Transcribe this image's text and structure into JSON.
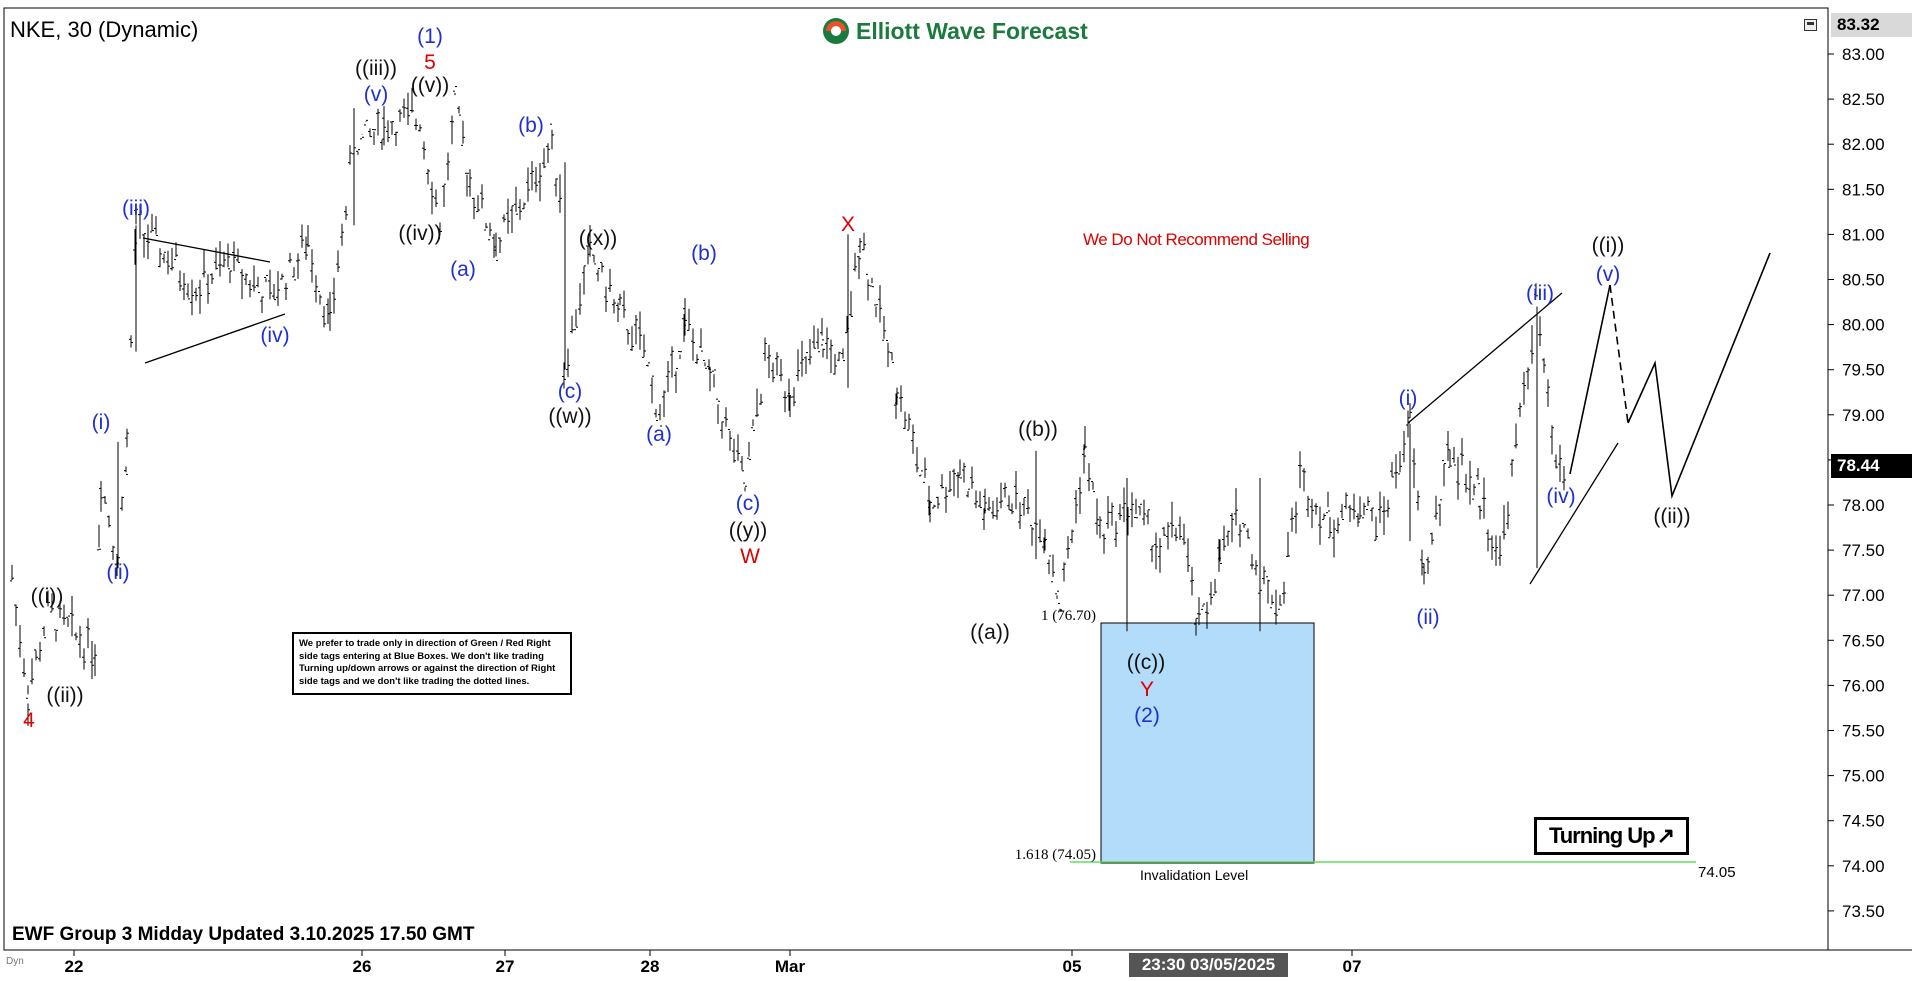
{
  "header": {
    "symbol_label": "NKE, 30 (Dynamic)",
    "brand_name": "Elliott Wave Forecast",
    "footer_text": "EWF Group 3 Midday Updated 3.10.2025 17.50 GMT",
    "corner_label": "Dyn",
    "recommendation": "We Do Not Recommend Selling"
  },
  "price_axis": {
    "ticks": [
      "83.00",
      "82.50",
      "82.00",
      "81.50",
      "81.00",
      "80.50",
      "80.00",
      "79.50",
      "79.00",
      "78.50",
      "78.00",
      "77.50",
      "77.00",
      "76.50",
      "76.00",
      "75.50",
      "75.00",
      "74.50",
      "74.00",
      "73.50"
    ],
    "tick_values": [
      83.0,
      82.5,
      82.0,
      81.5,
      81.0,
      80.5,
      80.0,
      79.5,
      79.0,
      78.5,
      78.0,
      77.5,
      77.0,
      76.5,
      76.0,
      75.5,
      75.0,
      74.5,
      74.0,
      73.5
    ],
    "top_price": "83.32",
    "last_price": "78.44"
  },
  "time_axis": {
    "labels": [
      "22",
      "26",
      "27",
      "28",
      "Mar",
      "05",
      "07"
    ],
    "crosshair_date": "23:30 03/05/2025"
  },
  "note": {
    "text": "We prefer to trade only in direction of Green / Red Right side tags entering at Blue Boxes. We don't like trading Turning up/down arrows or against the direction of Right side tags and we don't like trading the dotted lines."
  },
  "turning_badge": {
    "label": "Turning Up",
    "icon": "up-right-arrow-icon"
  },
  "blue_box": {
    "upper_label": "1 (76.70)",
    "upper_value": 76.7,
    "lower_label": "1.618 (74.05)",
    "lower_value": 74.05,
    "invalidation_label": "Invalidation Level",
    "right_value_label": "74.05",
    "fill_color": "#b3dcfa",
    "line_color": "#5ee05e"
  },
  "colors": {
    "wave_blue": "#1f2fd0",
    "wave_red": "#e00000",
    "wave_black": "#111111",
    "brand_green": "#1b7a3d"
  },
  "chart_data": {
    "type": "line",
    "title": "NKE, 30 (Dynamic)",
    "xlabel": "",
    "ylabel": "",
    "ylim": [
      73.2,
      83.4
    ],
    "x_ticks": [
      "22",
      "26",
      "27",
      "28",
      "Mar",
      "05",
      "07"
    ],
    "grid": false,
    "series": [
      {
        "name": "",
        "x": [
          0,
          1,
          2,
          3,
          4,
          5,
          6,
          7,
          8,
          9,
          10,
          11,
          12,
          13,
          14,
          15,
          16,
          17,
          18,
          19,
          20,
          21,
          22,
          23,
          24,
          25,
          26,
          27,
          28,
          29,
          30,
          31,
          32,
          33,
          34,
          35,
          36,
          37,
          38,
          39,
          40,
          41,
          42,
          43,
          44,
          45,
          46,
          47,
          48,
          49,
          50,
          51,
          52,
          53,
          54,
          55,
          56,
          57,
          58,
          59,
          60,
          61,
          62,
          63,
          64
        ],
        "values": [
          77.2,
          75.9,
          76.8,
          76.4,
          78.3,
          77.4,
          78.7,
          81.1,
          80.4,
          80.7,
          80.3,
          80.9,
          80.0,
          82.0,
          82.2,
          82.3,
          81.1,
          82.4,
          81.6,
          80.9,
          81.3,
          82.0,
          81.5,
          79.5,
          80.8,
          80.1,
          79.8,
          79.0,
          80.0,
          79.4,
          78.2,
          79.6,
          79.3,
          79.8,
          79.5,
          81.0,
          79.3,
          78.0,
          78.4,
          77.9,
          78.1,
          77.7,
          76.9,
          78.6,
          77.7,
          78.0,
          77.5,
          77.8,
          76.6,
          77.4,
          77.9,
          77.2,
          76.9,
          78.3,
          77.8,
          78.0,
          77.8,
          78.9,
          77.2,
          78.6,
          78.1,
          77.4,
          80.2,
          78.4,
          78.3
        ],
        "x_positions": [
          12,
          28,
          48,
          95,
          101,
          118,
          127,
          136,
          196,
          230,
          270,
          308,
          330,
          354,
          384,
          420,
          440,
          455,
          470,
          496,
          520,
          552,
          560,
          564,
          590,
          620,
          640,
          660,
          685,
          710,
          745,
          765,
          790,
          823,
          843,
          860,
          897,
          930,
          960,
          985,
          1012,
          1045,
          1060,
          1085,
          1100,
          1132,
          1160,
          1180,
          1199,
          1220,
          1240,
          1260,
          1280,
          1300,
          1330,
          1360,
          1380,
          1410,
          1424,
          1450,
          1480,
          1500,
          1536,
          1556,
          1566
        ]
      }
    ],
    "projection": {
      "solid_1": [
        [
          1570,
          474
        ],
        [
          1610,
          285
        ]
      ],
      "dashed": [
        [
          1610,
          285
        ],
        [
          1628,
          423
        ]
      ],
      "solid_2": [
        [
          1628,
          423
        ],
        [
          1655,
          363
        ],
        [
          1672,
          496
        ],
        [
          1770,
          253
        ]
      ]
    },
    "wave_labels": [
      {
        "text": "(1)",
        "color": "blue"
      },
      {
        "text": "5",
        "color": "red"
      },
      {
        "text": "((iii))",
        "color": "black"
      },
      {
        "text": "(v)",
        "color": "blue"
      },
      {
        "text": "((v))",
        "color": "black"
      },
      {
        "text": "(iii)",
        "color": "blue"
      },
      {
        "text": "((iv))",
        "color": "black"
      },
      {
        "text": "(a)",
        "color": "blue"
      },
      {
        "text": "(b)",
        "color": "blue"
      },
      {
        "text": "((x))",
        "color": "black"
      },
      {
        "text": "(iv)",
        "color": "blue"
      },
      {
        "text": "(c)",
        "color": "blue"
      },
      {
        "text": "((w))",
        "color": "black"
      },
      {
        "text": "(a)",
        "color": "blue"
      },
      {
        "text": "(b)",
        "color": "blue"
      },
      {
        "text": "(c)",
        "color": "blue"
      },
      {
        "text": "((y))",
        "color": "black"
      },
      {
        "text": "W",
        "color": "red"
      },
      {
        "text": "X",
        "color": "red"
      },
      {
        "text": "((b))",
        "color": "black"
      },
      {
        "text": "((a))",
        "color": "black"
      },
      {
        "text": "((c))",
        "color": "black"
      },
      {
        "text": "Y",
        "color": "red"
      },
      {
        "text": "(2)",
        "color": "blue"
      },
      {
        "text": "(i)",
        "color": "blue"
      },
      {
        "text": "(ii)",
        "color": "blue"
      },
      {
        "text": "(iii)",
        "color": "blue"
      },
      {
        "text": "(iv)",
        "color": "blue"
      },
      {
        "text": "((i))",
        "color": "black"
      },
      {
        "text": "(v)",
        "color": "blue"
      },
      {
        "text": "((ii))",
        "color": "black"
      },
      {
        "text": "(i)",
        "color": "blue"
      },
      {
        "text": "(ii)",
        "color": "blue"
      },
      {
        "text": "((i))",
        "color": "black"
      },
      {
        "text": "((ii))",
        "color": "black"
      },
      {
        "text": "4",
        "color": "red"
      }
    ]
  }
}
